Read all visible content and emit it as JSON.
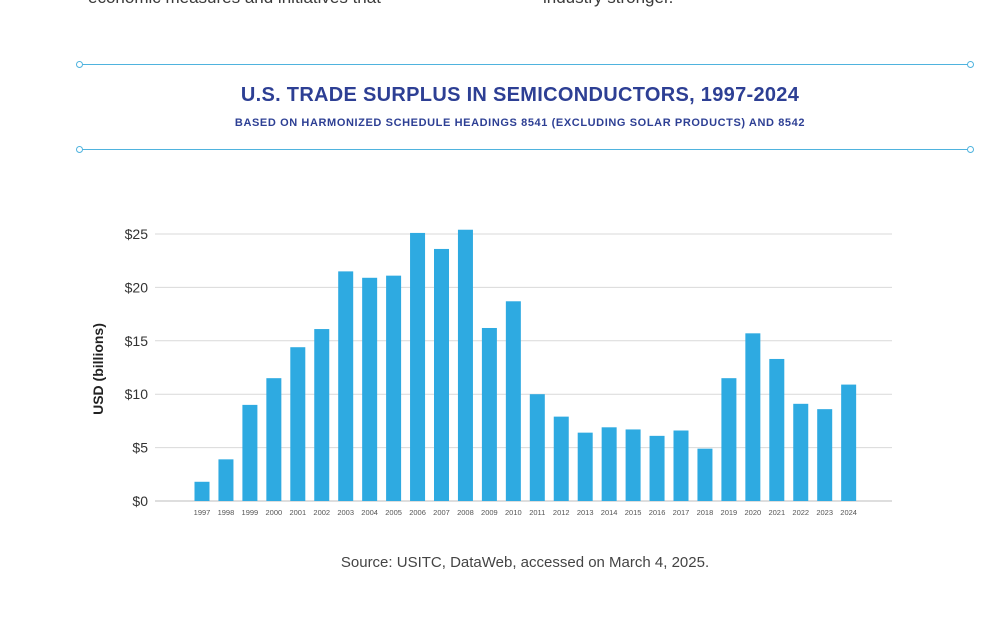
{
  "top_text": {
    "left": "economic measures and initiatives that",
    "right": "industry stronger."
  },
  "colors": {
    "bar": "#2eaae1",
    "title": "#2d3f94",
    "rule": "#4fb3de",
    "grid": "#d9d9d9"
  },
  "chart_data": {
    "type": "bar",
    "title": "U.S. TRADE SURPLUS IN SEMICONDUCTORS, 1997-2024",
    "subtitle": "BASED ON HARMONIZED SCHEDULE HEADINGS 8541 (EXCLUDING SOLAR PRODUCTS) AND 8542",
    "xlabel": "",
    "ylabel": "USD (billions)",
    "ylim": [
      0,
      25
    ],
    "yticks": [
      0,
      5,
      10,
      15,
      20,
      25
    ],
    "ytick_labels": [
      "$0",
      "$5",
      "$10",
      "$15",
      "$20",
      "$25"
    ],
    "grid": true,
    "categories": [
      "1997",
      "1998",
      "1999",
      "2000",
      "2001",
      "2002",
      "2003",
      "2004",
      "2005",
      "2006",
      "2007",
      "2008",
      "2009",
      "2010",
      "2011",
      "2012",
      "2013",
      "2014",
      "2015",
      "2016",
      "2017",
      "2018",
      "2019",
      "2020",
      "2021",
      "2022",
      "2023",
      "2024"
    ],
    "values": [
      1.8,
      3.9,
      9.0,
      11.5,
      14.4,
      16.1,
      21.5,
      20.9,
      21.1,
      25.1,
      23.6,
      25.4,
      16.2,
      18.7,
      10.0,
      7.9,
      6.4,
      6.9,
      6.7,
      6.1,
      6.6,
      4.9,
      11.5,
      15.7,
      13.3,
      9.1,
      8.6,
      10.9
    ]
  },
  "source": "Source: USITC, DataWeb, accessed on March 4, 2025."
}
